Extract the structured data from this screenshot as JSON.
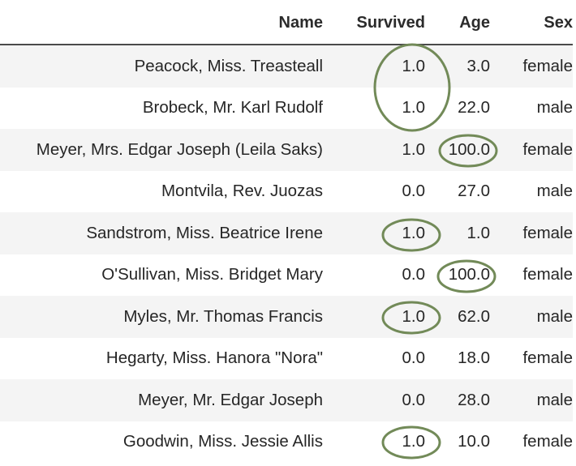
{
  "table": {
    "columns": [
      "Name",
      "Survived",
      "Age",
      "Sex"
    ],
    "rows": [
      [
        "Peacock, Miss. Treasteall",
        "1.0",
        "3.0",
        "female"
      ],
      [
        "Brobeck, Mr. Karl Rudolf",
        "1.0",
        "22.0",
        "male"
      ],
      [
        "Meyer, Mrs. Edgar Joseph (Leila Saks)",
        "1.0",
        "100.0",
        "female"
      ],
      [
        "Montvila, Rev. Juozas",
        "0.0",
        "27.0",
        "male"
      ],
      [
        "Sandstrom, Miss. Beatrice Irene",
        "1.0",
        "1.0",
        "female"
      ],
      [
        "O'Sullivan, Miss. Bridget Mary",
        "0.0",
        "100.0",
        "female"
      ],
      [
        "Myles, Mr. Thomas Francis",
        "1.0",
        "62.0",
        "male"
      ],
      [
        "Hegarty, Miss. Hanora \"Nora\"",
        "0.0",
        "18.0",
        "female"
      ],
      [
        "Meyer, Mr. Edgar Joseph",
        "0.0",
        "28.0",
        "male"
      ],
      [
        "Goodwin, Miss. Jessie Allis",
        "1.0",
        "10.0",
        "female"
      ]
    ]
  },
  "highlight_color": "#728a58"
}
